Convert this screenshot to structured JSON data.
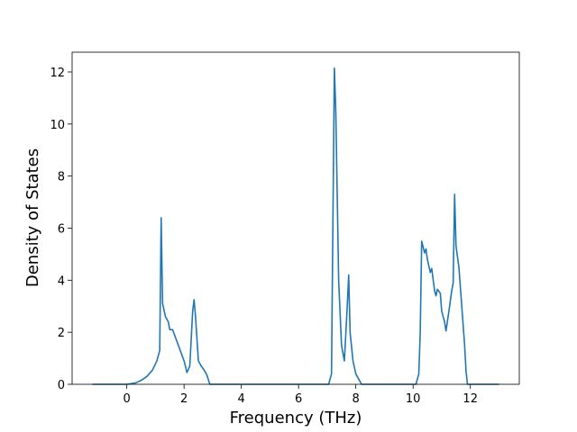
{
  "chart_data": {
    "type": "line",
    "x_label": "Frequency (THz)",
    "y_label": "Density of States",
    "color": "#1f77b4",
    "x": [
      -1.2,
      0,
      0.3,
      0.5,
      0.7,
      0.9,
      1.05,
      1.15,
      1.2,
      1.25,
      1.35,
      1.45,
      1.5,
      1.6,
      1.7,
      1.8,
      1.9,
      2.0,
      2.1,
      2.2,
      2.3,
      2.35,
      2.4,
      2.5,
      2.6,
      2.7,
      2.8,
      2.9,
      7.05,
      7.15,
      7.25,
      7.3,
      7.4,
      7.5,
      7.6,
      7.7,
      7.75,
      7.8,
      7.9,
      8.0,
      8.2,
      10.1,
      10.2,
      10.25,
      10.3,
      10.4,
      10.45,
      10.5,
      10.6,
      10.65,
      10.75,
      10.8,
      10.85,
      10.95,
      11.0,
      11.1,
      11.15,
      11.25,
      11.35,
      11.4,
      11.45,
      11.5,
      11.6,
      11.7,
      11.8,
      11.85,
      11.9,
      13.0
    ],
    "values": [
      0,
      0,
      0.05,
      0.15,
      0.3,
      0.55,
      0.9,
      1.3,
      6.4,
      3.1,
      2.6,
      2.4,
      2.1,
      2.1,
      1.8,
      1.5,
      1.2,
      0.9,
      0.45,
      0.7,
      2.8,
      3.25,
      2.6,
      0.9,
      0.7,
      0.55,
      0.35,
      0,
      0,
      0.4,
      12.15,
      10.5,
      4.0,
      1.5,
      0.9,
      3.0,
      4.2,
      2.0,
      0.9,
      0.4,
      0,
      0,
      0.4,
      2.0,
      5.5,
      5.05,
      5.2,
      4.8,
      4.3,
      4.45,
      3.6,
      3.4,
      3.65,
      3.5,
      2.8,
      2.4,
      2.05,
      2.8,
      3.6,
      3.9,
      7.3,
      5.3,
      4.5,
      3.0,
      1.5,
      0.5,
      0,
      0
    ],
    "xlim": [
      -1.91,
      13.71
    ],
    "ylim": [
      0,
      12.76
    ],
    "xticks": [
      0,
      2,
      4,
      6,
      8,
      10,
      12
    ],
    "yticks": [
      0,
      2,
      4,
      6,
      8,
      10,
      12
    ]
  }
}
